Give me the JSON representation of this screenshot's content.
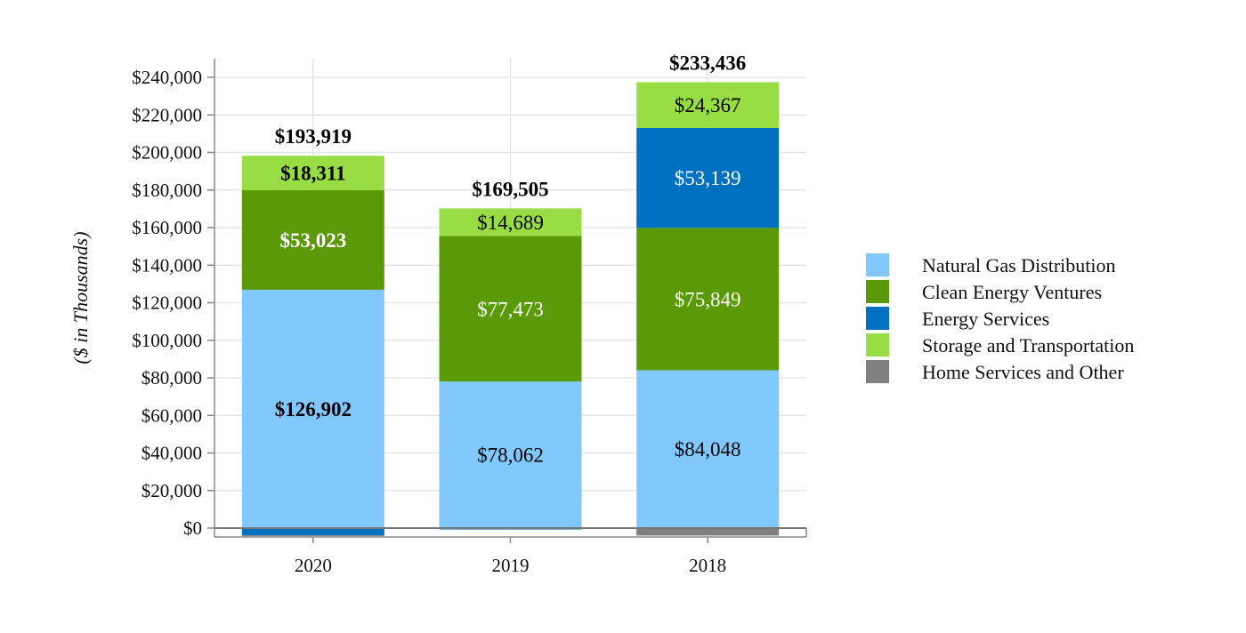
{
  "chart_data": {
    "type": "bar",
    "stacked": true,
    "title": "",
    "xlabel": "",
    "ylabel": "($ in Thousands)",
    "ylim": [
      0,
      240000
    ],
    "yticks": [
      0,
      20000,
      40000,
      60000,
      80000,
      100000,
      120000,
      140000,
      160000,
      180000,
      200000,
      220000,
      240000
    ],
    "ytick_labels": [
      "$0",
      "$20,000",
      "$40,000",
      "$60,000",
      "$80,000",
      "$100,000",
      "$120,000",
      "$140,000",
      "$160,000",
      "$180,000",
      "$200,000",
      "$220,000",
      "$240,000"
    ],
    "categories": [
      "2020",
      "2019",
      "2018"
    ],
    "totals": [
      193919,
      169505,
      233436
    ],
    "total_labels": [
      "$193,919",
      "$169,505",
      "$233,436"
    ],
    "series": [
      {
        "name": "Natural Gas Distribution",
        "color": "#80C8FF",
        "values": [
          126902,
          78062,
          84048
        ],
        "labels": [
          "$126,902",
          "$78,062",
          "$84,048"
        ],
        "label_color": "#000000",
        "label_bold": [
          true,
          false,
          false
        ]
      },
      {
        "name": "Clean Energy Ventures",
        "color": "#5A9A08",
        "values": [
          53023,
          77473,
          75849
        ],
        "labels": [
          "$53,023",
          "$77,473",
          "$75,849"
        ],
        "label_color": "#ffffff",
        "label_bold": [
          true,
          false,
          false
        ]
      },
      {
        "name": "Energy Services",
        "color": "#0070C0",
        "values": [
          -3890,
          -719,
          53139
        ],
        "labels": [
          "",
          "",
          "$53,139"
        ],
        "label_color": "#ffffff",
        "label_bold": [
          false,
          false,
          false
        ]
      },
      {
        "name": "Storage and Transportation",
        "color": "#99DD44",
        "values": [
          18311,
          14689,
          24367
        ],
        "labels": [
          "$18,311",
          "$14,689",
          "$24,367"
        ],
        "label_color": "#000000",
        "label_bold": [
          true,
          false,
          false
        ]
      },
      {
        "name": "Home Services and Other",
        "color": "#808080",
        "values": [
          -427,
          0,
          -3967
        ],
        "labels": [
          "",
          "",
          ""
        ],
        "label_color": "#000000",
        "label_bold": [
          false,
          false,
          false
        ]
      }
    ],
    "legend": "right",
    "grid": true
  }
}
